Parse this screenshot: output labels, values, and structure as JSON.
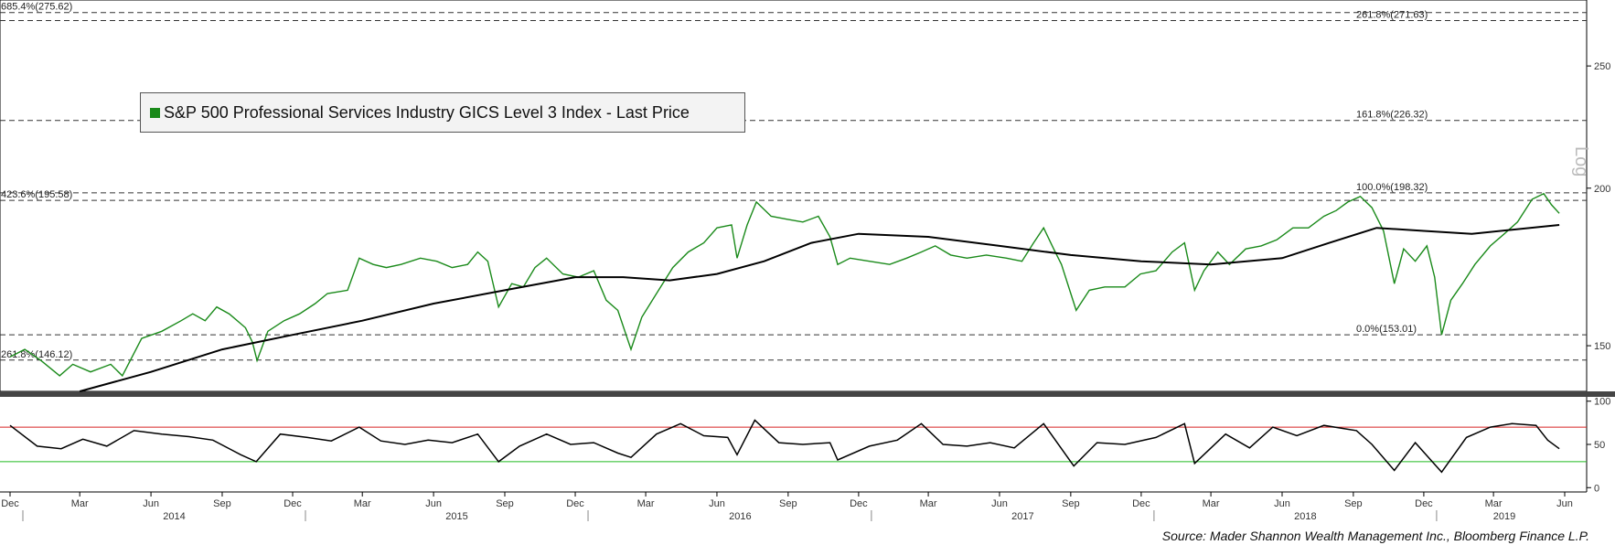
{
  "chart_data": [
    {
      "type": "line",
      "title": "",
      "scale": "log",
      "ylabel": "Log",
      "ylim": [
        138,
        282
      ],
      "yticks": [
        150,
        200,
        250
      ],
      "series": [
        {
          "name": "S&P 500 Professional Services Industry GICS Level 3 Index - Last Price",
          "color": "#1a8a1a",
          "points": [
            [
              "2013-12-01",
              147
            ],
            [
              "2013-12-20",
              149
            ],
            [
              "2014-01-10",
              146
            ],
            [
              "2014-02-03",
              142
            ],
            [
              "2014-02-20",
              145
            ],
            [
              "2014-03-15",
              143
            ],
            [
              "2014-04-10",
              145
            ],
            [
              "2014-04-25",
              142
            ],
            [
              "2014-05-20",
              152
            ],
            [
              "2014-06-15",
              154
            ],
            [
              "2014-07-10",
              157
            ],
            [
              "2014-07-25",
              159
            ],
            [
              "2014-08-10",
              157
            ],
            [
              "2014-08-25",
              161
            ],
            [
              "2014-09-10",
              159
            ],
            [
              "2014-10-01",
              155
            ],
            [
              "2014-10-10",
              151
            ],
            [
              "2014-10-16",
              146
            ],
            [
              "2014-10-30",
              154
            ],
            [
              "2014-11-20",
              157
            ],
            [
              "2014-12-10",
              159
            ],
            [
              "2014-12-30",
              162
            ],
            [
              "2015-01-15",
              165
            ],
            [
              "2015-02-10",
              166
            ],
            [
              "2015-02-25",
              176
            ],
            [
              "2015-03-15",
              174
            ],
            [
              "2015-04-01",
              173
            ],
            [
              "2015-04-20",
              174
            ],
            [
              "2015-05-15",
              176
            ],
            [
              "2015-06-05",
              175
            ],
            [
              "2015-06-25",
              173
            ],
            [
              "2015-07-15",
              174
            ],
            [
              "2015-07-28",
              178
            ],
            [
              "2015-08-10",
              175
            ],
            [
              "2015-08-24",
              161
            ],
            [
              "2015-09-10",
              168
            ],
            [
              "2015-09-25",
              167
            ],
            [
              "2015-10-10",
              173
            ],
            [
              "2015-10-25",
              176
            ],
            [
              "2015-11-15",
              171
            ],
            [
              "2015-12-05",
              170
            ],
            [
              "2015-12-25",
              172
            ],
            [
              "2016-01-10",
              163
            ],
            [
              "2016-01-25",
              160
            ],
            [
              "2016-02-11",
              149
            ],
            [
              "2016-02-25",
              158
            ],
            [
              "2016-03-15",
              165
            ],
            [
              "2016-04-05",
              173
            ],
            [
              "2016-04-25",
              178
            ],
            [
              "2016-05-15",
              181
            ],
            [
              "2016-06-01",
              186
            ],
            [
              "2016-06-20",
              187
            ],
            [
              "2016-06-27",
              176
            ],
            [
              "2016-07-10",
              187
            ],
            [
              "2016-07-22",
              195
            ],
            [
              "2016-08-10",
              190
            ],
            [
              "2016-08-30",
              189
            ],
            [
              "2016-09-20",
              188
            ],
            [
              "2016-10-10",
              190
            ],
            [
              "2016-10-25",
              183
            ],
            [
              "2016-11-04",
              174
            ],
            [
              "2016-11-20",
              176
            ],
            [
              "2016-12-15",
              175
            ],
            [
              "2017-01-10",
              174
            ],
            [
              "2017-02-01",
              176
            ],
            [
              "2017-02-20",
              178
            ],
            [
              "2017-03-10",
              180
            ],
            [
              "2017-03-30",
              177
            ],
            [
              "2017-04-20",
              176
            ],
            [
              "2017-05-15",
              177
            ],
            [
              "2017-06-10",
              176
            ],
            [
              "2017-06-30",
              175
            ],
            [
              "2017-07-15",
              181
            ],
            [
              "2017-07-28",
              186
            ],
            [
              "2017-08-10",
              179
            ],
            [
              "2017-08-20",
              174
            ],
            [
              "2017-09-01",
              165
            ],
            [
              "2017-09-08",
              160
            ],
            [
              "2017-09-25",
              166
            ],
            [
              "2017-10-15",
              167
            ],
            [
              "2017-11-10",
              167
            ],
            [
              "2017-11-30",
              171
            ],
            [
              "2017-12-20",
              172
            ],
            [
              "2018-01-10",
              178
            ],
            [
              "2018-01-26",
              181
            ],
            [
              "2018-02-08",
              166
            ],
            [
              "2018-02-20",
              172
            ],
            [
              "2018-03-10",
              178
            ],
            [
              "2018-03-25",
              174
            ],
            [
              "2018-04-15",
              179
            ],
            [
              "2018-05-05",
              180
            ],
            [
              "2018-05-25",
              182
            ],
            [
              "2018-06-15",
              186
            ],
            [
              "2018-07-05",
              186
            ],
            [
              "2018-07-25",
              190
            ],
            [
              "2018-08-10",
              192
            ],
            [
              "2018-08-25",
              195
            ],
            [
              "2018-09-10",
              197
            ],
            [
              "2018-09-25",
              193
            ],
            [
              "2018-10-10",
              185
            ],
            [
              "2018-10-24",
              168
            ],
            [
              "2018-11-05",
              179
            ],
            [
              "2018-11-20",
              175
            ],
            [
              "2018-12-05",
              180
            ],
            [
              "2018-12-15",
              170
            ],
            [
              "2018-12-24",
              153
            ],
            [
              "2019-01-05",
              163
            ],
            [
              "2019-01-20",
              168
            ],
            [
              "2019-02-05",
              174
            ],
            [
              "2019-02-25",
              180
            ],
            [
              "2019-03-15",
              184
            ],
            [
              "2019-04-01",
              188
            ],
            [
              "2019-04-20",
              196
            ],
            [
              "2019-05-05",
              198
            ],
            [
              "2019-05-15",
              194
            ],
            [
              "2019-05-25",
              191
            ]
          ]
        },
        {
          "name": "",
          "color": "#000000",
          "points": [
            [
              "2014-03-01",
              138
            ],
            [
              "2014-06-01",
              143
            ],
            [
              "2014-09-01",
              149
            ],
            [
              "2014-12-01",
              153
            ],
            [
              "2015-03-01",
              157
            ],
            [
              "2015-06-01",
              162
            ],
            [
              "2015-09-01",
              166
            ],
            [
              "2015-12-01",
              170
            ],
            [
              "2016-02-01",
              170
            ],
            [
              "2016-04-01",
              169
            ],
            [
              "2016-06-01",
              171
            ],
            [
              "2016-08-01",
              175
            ],
            [
              "2016-10-01",
              181
            ],
            [
              "2016-12-01",
              184
            ],
            [
              "2017-03-01",
              183
            ],
            [
              "2017-06-01",
              180
            ],
            [
              "2017-09-01",
              177
            ],
            [
              "2017-12-01",
              175
            ],
            [
              "2018-03-01",
              174
            ],
            [
              "2018-06-01",
              176
            ],
            [
              "2018-08-01",
              181
            ],
            [
              "2018-10-01",
              186
            ],
            [
              "2018-12-01",
              185
            ],
            [
              "2019-02-01",
              184
            ],
            [
              "2019-05-25",
              187
            ]
          ]
        }
      ],
      "fib_lines": [
        {
          "label": "685.4%(275.62)",
          "value": 275.62,
          "side": "left"
        },
        {
          "label": "261.8%(271.63)",
          "value": 271.63,
          "side": "right"
        },
        {
          "label": "161.8%(226.32)",
          "value": 226.32,
          "side": "right"
        },
        {
          "label": "423.6%(195.58)",
          "value": 195.58,
          "side": "left"
        },
        {
          "label": "100.0%(198.32)",
          "value": 198.32,
          "side": "right"
        },
        {
          "label": "0.0%(153.01)",
          "value": 153.01,
          "side": "right"
        },
        {
          "label": "261.8%(146.12)",
          "value": 146.12,
          "side": "left"
        }
      ]
    },
    {
      "type": "line",
      "title": "",
      "ylim": [
        -5,
        105
      ],
      "yticks": [
        0,
        50,
        100
      ],
      "overbought": 70,
      "oversold": 30,
      "series": [
        {
          "name": "",
          "color": "#000000",
          "points": [
            [
              "2013-12-01",
              72
            ],
            [
              "2014-01-05",
              48
            ],
            [
              "2014-02-05",
              45
            ],
            [
              "2014-03-05",
              56
            ],
            [
              "2014-04-05",
              48
            ],
            [
              "2014-05-10",
              66
            ],
            [
              "2014-06-15",
              62
            ],
            [
              "2014-07-20",
              59
            ],
            [
              "2014-08-20",
              55
            ],
            [
              "2014-09-25",
              38
            ],
            [
              "2014-10-15",
              30
            ],
            [
              "2014-11-15",
              62
            ],
            [
              "2014-12-20",
              58
            ],
            [
              "2015-01-20",
              54
            ],
            [
              "2015-02-25",
              70
            ],
            [
              "2015-03-25",
              54
            ],
            [
              "2015-04-25",
              50
            ],
            [
              "2015-05-25",
              55
            ],
            [
              "2015-06-25",
              52
            ],
            [
              "2015-07-28",
              62
            ],
            [
              "2015-08-24",
              30
            ],
            [
              "2015-09-20",
              48
            ],
            [
              "2015-10-25",
              62
            ],
            [
              "2015-11-25",
              50
            ],
            [
              "2015-12-25",
              52
            ],
            [
              "2016-01-25",
              40
            ],
            [
              "2016-02-11",
              35
            ],
            [
              "2016-03-15",
              62
            ],
            [
              "2016-04-15",
              74
            ],
            [
              "2016-05-15",
              60
            ],
            [
              "2016-06-15",
              58
            ],
            [
              "2016-06-27",
              38
            ],
            [
              "2016-07-20",
              78
            ],
            [
              "2016-08-20",
              52
            ],
            [
              "2016-09-20",
              50
            ],
            [
              "2016-10-25",
              52
            ],
            [
              "2016-11-04",
              32
            ],
            [
              "2016-12-15",
              48
            ],
            [
              "2017-01-20",
              55
            ],
            [
              "2017-02-20",
              74
            ],
            [
              "2017-03-20",
              50
            ],
            [
              "2017-04-20",
              48
            ],
            [
              "2017-05-20",
              52
            ],
            [
              "2017-06-20",
              46
            ],
            [
              "2017-07-28",
              74
            ],
            [
              "2017-09-05",
              25
            ],
            [
              "2017-10-05",
              52
            ],
            [
              "2017-11-10",
              50
            ],
            [
              "2017-12-20",
              58
            ],
            [
              "2018-01-26",
              74
            ],
            [
              "2018-02-08",
              28
            ],
            [
              "2018-03-20",
              62
            ],
            [
              "2018-04-20",
              46
            ],
            [
              "2018-05-20",
              70
            ],
            [
              "2018-06-20",
              60
            ],
            [
              "2018-07-25",
              72
            ],
            [
              "2018-09-05",
              66
            ],
            [
              "2018-09-25",
              50
            ],
            [
              "2018-10-24",
              20
            ],
            [
              "2018-11-20",
              52
            ],
            [
              "2018-12-24",
              18
            ],
            [
              "2019-01-25",
              58
            ],
            [
              "2019-02-25",
              70
            ],
            [
              "2019-03-25",
              74
            ],
            [
              "2019-04-25",
              72
            ],
            [
              "2019-05-10",
              55
            ],
            [
              "2019-05-25",
              45
            ]
          ]
        }
      ]
    }
  ],
  "x_axis": {
    "month_ticks": [
      {
        "date": "2013-12-01",
        "label": "Dec"
      },
      {
        "date": "2014-03-01",
        "label": "Mar"
      },
      {
        "date": "2014-06-01",
        "label": "Jun"
      },
      {
        "date": "2014-09-01",
        "label": "Sep"
      },
      {
        "date": "2014-12-01",
        "label": "Dec"
      },
      {
        "date": "2015-03-01",
        "label": "Mar"
      },
      {
        "date": "2015-06-01",
        "label": "Jun"
      },
      {
        "date": "2015-09-01",
        "label": "Sep"
      },
      {
        "date": "2015-12-01",
        "label": "Dec"
      },
      {
        "date": "2016-03-01",
        "label": "Mar"
      },
      {
        "date": "2016-06-01",
        "label": "Jun"
      },
      {
        "date": "2016-09-01",
        "label": "Sep"
      },
      {
        "date": "2016-12-01",
        "label": "Dec"
      },
      {
        "date": "2017-03-01",
        "label": "Mar"
      },
      {
        "date": "2017-06-01",
        "label": "Jun"
      },
      {
        "date": "2017-09-01",
        "label": "Sep"
      },
      {
        "date": "2017-12-01",
        "label": "Dec"
      },
      {
        "date": "2018-03-01",
        "label": "Mar"
      },
      {
        "date": "2018-06-01",
        "label": "Jun"
      },
      {
        "date": "2018-09-01",
        "label": "Sep"
      },
      {
        "date": "2018-12-01",
        "label": "Dec"
      },
      {
        "date": "2019-03-01",
        "label": "Mar"
      },
      {
        "date": "2019-06-01",
        "label": "Jun"
      }
    ],
    "year_labels": [
      {
        "date": "2014-07-01",
        "label": "2014"
      },
      {
        "date": "2015-07-01",
        "label": "2015"
      },
      {
        "date": "2016-07-01",
        "label": "2016"
      },
      {
        "date": "2017-07-01",
        "label": "2017"
      },
      {
        "date": "2018-07-01",
        "label": "2018"
      },
      {
        "date": "2019-03-15",
        "label": "2019"
      }
    ]
  },
  "legend": {
    "label": "S&P 500 Professional Services Industry GICS Level 3 Index - Last Price",
    "swatch_color": "#1a8a1a"
  },
  "y_axis_title": "Log",
  "source": "Source: Mader Shannon Wealth Management Inc., Bloomberg Finance L.P."
}
